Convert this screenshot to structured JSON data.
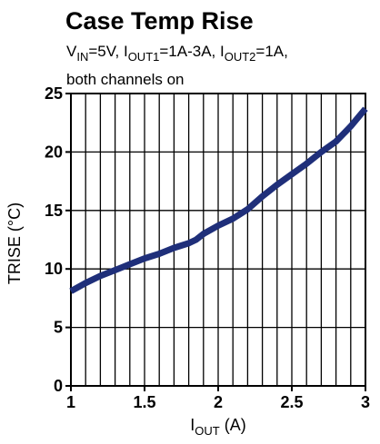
{
  "chart_data": {
    "type": "line",
    "title": "Case Temp Rise",
    "subtitle": {
      "line1_parts": [
        {
          "text": "V",
          "sub": false
        },
        {
          "text": "IN",
          "sub": true
        },
        {
          "text": "=5V, I",
          "sub": false
        },
        {
          "text": "OUT1",
          "sub": true
        },
        {
          "text": "=1A-3A, I",
          "sub": false
        },
        {
          "text": "OUT2",
          "sub": true
        },
        {
          "text": "=1A,",
          "sub": false
        }
      ],
      "line2": "both channels on"
    },
    "ylabel": "TRISE (°C)",
    "xlabel_parts": [
      {
        "text": "I",
        "sub": false
      },
      {
        "text": "OUT",
        "sub": true
      },
      {
        "text": " (A)",
        "sub": false
      }
    ],
    "xlim": [
      1,
      3
    ],
    "ylim": [
      0,
      25
    ],
    "x_ticks": [
      1,
      1.5,
      2,
      2.5,
      3
    ],
    "x_tick_labels": [
      "1",
      "1.5",
      "2",
      "2.5",
      "3"
    ],
    "y_ticks": [
      0,
      5,
      10,
      15,
      20,
      25
    ],
    "y_tick_labels": [
      "0",
      "5",
      "10",
      "15",
      "20",
      "25"
    ],
    "grid": true,
    "grid_x_step": 0.1,
    "grid_y_step": 5,
    "series": [
      {
        "color": "#1f2f7a",
        "x": [
          1.0,
          1.1,
          1.2,
          1.3,
          1.4,
          1.5,
          1.6,
          1.7,
          1.8,
          1.85,
          1.9,
          2.0,
          2.1,
          2.2,
          2.3,
          2.4,
          2.5,
          2.6,
          2.7,
          2.8,
          2.9,
          3.0
        ],
        "y": [
          8.1,
          8.8,
          9.4,
          9.9,
          10.4,
          10.9,
          11.3,
          11.8,
          12.2,
          12.5,
          13.0,
          13.7,
          14.3,
          15.1,
          16.2,
          17.2,
          18.1,
          19.0,
          20.0,
          20.9,
          22.2,
          23.7
        ]
      }
    ]
  }
}
